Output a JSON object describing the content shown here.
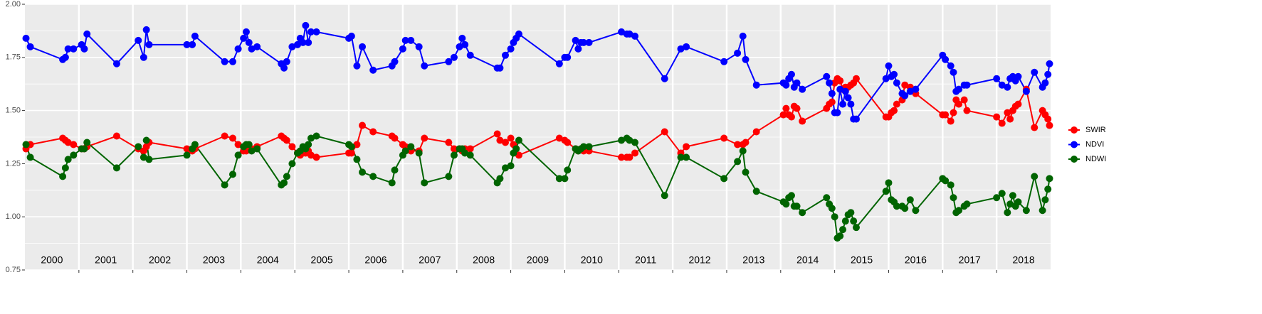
{
  "chart_data": {
    "type": "line",
    "x": [
      2000.02,
      2000.1,
      2000.7,
      2000.75,
      2000.8,
      2000.9,
      2001.05,
      2001.1,
      2001.15,
      2001.7,
      2002.1,
      2002.2,
      2002.25,
      2002.3,
      2003.0,
      2003.1,
      2003.15,
      2003.7,
      2003.85,
      2003.95,
      2004.05,
      2004.1,
      2004.15,
      2004.2,
      2004.3,
      2004.75,
      2004.8,
      2004.85,
      2004.95,
      2005.05,
      2005.1,
      2005.15,
      2005.2,
      2005.25,
      2005.3,
      2005.4,
      2006.0,
      2006.05,
      2006.15,
      2006.25,
      2006.45,
      2006.8,
      2006.85,
      2007.0,
      2007.05,
      2007.15,
      2007.3,
      2007.4,
      2007.85,
      2007.95,
      2008.05,
      2008.1,
      2008.15,
      2008.25,
      2008.75,
      2008.8,
      2008.9,
      2009.0,
      2009.05,
      2009.1,
      2009.15,
      2009.9,
      2010.0,
      2010.05,
      2010.2,
      2010.25,
      2010.3,
      2010.35,
      2010.45,
      2011.05,
      2011.15,
      2011.2,
      2011.3,
      2011.85,
      2012.15,
      2012.25,
      2012.95,
      2013.2,
      2013.3,
      2013.35,
      2013.55,
      2014.05,
      2014.1,
      2014.15,
      2014.2,
      2014.25,
      2014.3,
      2014.4,
      2014.85,
      2014.9,
      2014.95,
      2015.0,
      2015.05,
      2015.1,
      2015.15,
      2015.2,
      2015.25,
      2015.3,
      2015.35,
      2015.4,
      2015.95,
      2016.0,
      2016.05,
      2016.1,
      2016.15,
      2016.25,
      2016.3,
      2016.4,
      2016.5,
      2017.0,
      2017.05,
      2017.15,
      2017.2,
      2017.25,
      2017.3,
      2017.4,
      2017.45,
      2018.0,
      2018.1,
      2018.2,
      2018.25,
      2018.3,
      2018.35,
      2018.4,
      2018.55,
      2018.7,
      2018.85,
      2018.9,
      2018.95,
      2018.98
    ],
    "series": [
      {
        "name": "SWIR",
        "color": "#ff0000",
        "values": [
          1.32,
          1.34,
          1.37,
          1.36,
          1.35,
          1.34,
          1.32,
          1.32,
          1.33,
          1.38,
          1.32,
          1.31,
          1.33,
          1.35,
          1.32,
          1.31,
          1.32,
          1.38,
          1.37,
          1.34,
          1.31,
          1.31,
          1.32,
          1.32,
          1.33,
          1.38,
          1.37,
          1.36,
          1.33,
          1.3,
          1.29,
          1.3,
          1.3,
          1.31,
          1.29,
          1.28,
          1.3,
          1.3,
          1.34,
          1.43,
          1.4,
          1.38,
          1.37,
          1.34,
          1.33,
          1.31,
          1.31,
          1.37,
          1.35,
          1.32,
          1.32,
          1.31,
          1.32,
          1.32,
          1.39,
          1.36,
          1.35,
          1.37,
          1.34,
          1.32,
          1.29,
          1.37,
          1.36,
          1.35,
          1.32,
          1.31,
          1.32,
          1.31,
          1.31,
          1.28,
          1.28,
          1.28,
          1.3,
          1.4,
          1.3,
          1.33,
          1.37,
          1.34,
          1.34,
          1.35,
          1.4,
          1.48,
          1.51,
          1.48,
          1.47,
          1.52,
          1.51,
          1.45,
          1.51,
          1.53,
          1.54,
          1.63,
          1.65,
          1.64,
          1.6,
          1.61,
          1.61,
          1.62,
          1.63,
          1.65,
          1.47,
          1.47,
          1.49,
          1.5,
          1.53,
          1.55,
          1.62,
          1.61,
          1.58,
          1.48,
          1.48,
          1.45,
          1.49,
          1.55,
          1.53,
          1.55,
          1.5,
          1.47,
          1.44,
          1.49,
          1.46,
          1.5,
          1.52,
          1.53,
          1.6,
          1.42,
          1.5,
          1.48,
          1.46,
          1.43
        ]
      },
      {
        "name": "NDVI",
        "color": "#0000ff",
        "values": [
          1.84,
          1.8,
          1.74,
          1.75,
          1.79,
          1.79,
          1.81,
          1.79,
          1.86,
          1.72,
          1.83,
          1.75,
          1.88,
          1.81,
          1.81,
          1.81,
          1.85,
          1.73,
          1.73,
          1.79,
          1.84,
          1.87,
          1.82,
          1.79,
          1.8,
          1.72,
          1.7,
          1.73,
          1.8,
          1.81,
          1.84,
          1.82,
          1.9,
          1.82,
          1.87,
          1.87,
          1.84,
          1.85,
          1.71,
          1.8,
          1.69,
          1.71,
          1.73,
          1.79,
          1.83,
          1.83,
          1.8,
          1.71,
          1.73,
          1.75,
          1.8,
          1.84,
          1.81,
          1.76,
          1.7,
          1.7,
          1.76,
          1.79,
          1.82,
          1.84,
          1.86,
          1.72,
          1.75,
          1.75,
          1.83,
          1.79,
          1.82,
          1.82,
          1.82,
          1.87,
          1.86,
          1.86,
          1.85,
          1.65,
          1.79,
          1.8,
          1.73,
          1.77,
          1.85,
          1.74,
          1.62,
          1.63,
          1.62,
          1.65,
          1.67,
          1.61,
          1.63,
          1.6,
          1.66,
          1.63,
          1.58,
          1.49,
          1.49,
          1.6,
          1.53,
          1.59,
          1.56,
          1.53,
          1.46,
          1.46,
          1.65,
          1.71,
          1.66,
          1.67,
          1.63,
          1.58,
          1.57,
          1.59,
          1.6,
          1.76,
          1.74,
          1.71,
          1.68,
          1.59,
          1.6,
          1.62,
          1.62,
          1.65,
          1.62,
          1.61,
          1.65,
          1.66,
          1.64,
          1.66,
          1.59,
          1.68,
          1.61,
          1.63,
          1.67,
          1.72
        ]
      },
      {
        "name": "NDWI",
        "color": "#006400",
        "values": [
          1.34,
          1.28,
          1.19,
          1.23,
          1.27,
          1.29,
          1.32,
          1.32,
          1.35,
          1.23,
          1.33,
          1.28,
          1.36,
          1.27,
          1.29,
          1.32,
          1.34,
          1.15,
          1.2,
          1.29,
          1.33,
          1.34,
          1.34,
          1.31,
          1.32,
          1.15,
          1.16,
          1.19,
          1.25,
          1.3,
          1.31,
          1.33,
          1.32,
          1.34,
          1.37,
          1.38,
          1.34,
          1.33,
          1.27,
          1.21,
          1.19,
          1.16,
          1.22,
          1.29,
          1.31,
          1.33,
          1.3,
          1.16,
          1.19,
          1.29,
          1.32,
          1.32,
          1.3,
          1.29,
          1.16,
          1.18,
          1.23,
          1.24,
          1.3,
          1.32,
          1.36,
          1.18,
          1.18,
          1.22,
          1.32,
          1.31,
          1.32,
          1.33,
          1.33,
          1.36,
          1.37,
          1.36,
          1.35,
          1.1,
          1.28,
          1.28,
          1.18,
          1.26,
          1.31,
          1.21,
          1.12,
          1.07,
          1.06,
          1.09,
          1.1,
          1.05,
          1.05,
          1.02,
          1.09,
          1.06,
          1.04,
          1.0,
          0.9,
          0.91,
          0.94,
          0.98,
          1.01,
          1.02,
          0.98,
          0.95,
          1.12,
          1.16,
          1.08,
          1.07,
          1.05,
          1.05,
          1.04,
          1.08,
          1.03,
          1.18,
          1.17,
          1.15,
          1.09,
          1.02,
          1.03,
          1.05,
          1.06,
          1.09,
          1.11,
          1.02,
          1.06,
          1.1,
          1.05,
          1.07,
          1.03,
          1.19,
          1.03,
          1.08,
          1.13,
          1.18
        ]
      }
    ],
    "xlim": [
      2000,
      2019
    ],
    "xticks": [
      2001,
      2002,
      2003,
      2004,
      2005,
      2006,
      2007,
      2008,
      2009,
      2010,
      2011,
      2012,
      2013,
      2014,
      2015,
      2016,
      2017,
      2018
    ],
    "year_labels": [
      {
        "value": 2000.5,
        "label": "2000"
      },
      {
        "value": 2001.5,
        "label": "2001"
      },
      {
        "value": 2002.5,
        "label": "2002"
      },
      {
        "value": 2003.5,
        "label": "2003"
      },
      {
        "value": 2004.5,
        "label": "2004"
      },
      {
        "value": 2005.5,
        "label": "2005"
      },
      {
        "value": 2006.5,
        "label": "2006"
      },
      {
        "value": 2007.5,
        "label": "2007"
      },
      {
        "value": 2008.5,
        "label": "2008"
      },
      {
        "value": 2009.5,
        "label": "2009"
      },
      {
        "value": 2010.5,
        "label": "2010"
      },
      {
        "value": 2011.5,
        "label": "2011"
      },
      {
        "value": 2012.5,
        "label": "2012"
      },
      {
        "value": 2013.5,
        "label": "2013"
      },
      {
        "value": 2014.5,
        "label": "2014"
      },
      {
        "value": 2015.5,
        "label": "2015"
      },
      {
        "value": 2016.5,
        "label": "2016"
      },
      {
        "value": 2017.5,
        "label": "2017"
      },
      {
        "value": 2018.5,
        "label": "2018"
      }
    ],
    "ylim": [
      0.75,
      2.0
    ],
    "yticks": [
      {
        "value": 0.75,
        "label": "0.75"
      },
      {
        "value": 1.0,
        "label": "1.00"
      },
      {
        "value": 1.25,
        "label": "1.25"
      },
      {
        "value": 1.5,
        "label": "1.50"
      },
      {
        "value": 1.75,
        "label": "1.75"
      },
      {
        "value": 2.0,
        "label": "2.00"
      }
    ],
    "y_minor_ticks": [
      0.875,
      1.125,
      1.375,
      1.625,
      1.875
    ],
    "grid": true,
    "legend": "right"
  }
}
